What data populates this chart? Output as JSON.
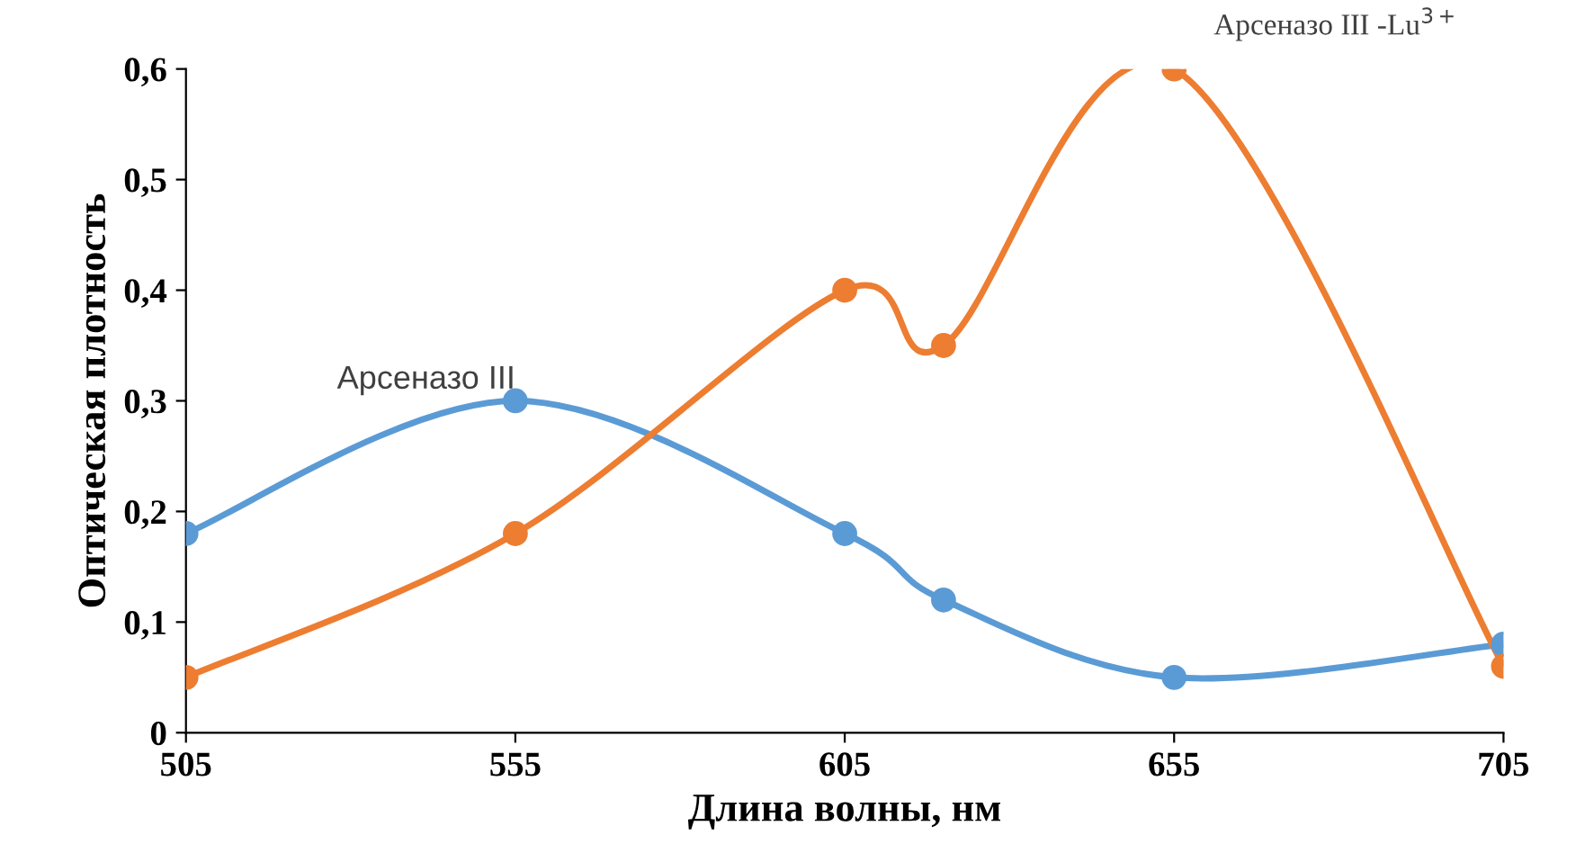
{
  "chart_data": {
    "type": "line",
    "xlabel": "Длина волны, нм",
    "ylabel": "Оптическая плотность",
    "x": [
      505,
      555,
      605,
      620,
      655,
      705
    ],
    "series": [
      {
        "name": "Арсеназо III",
        "color": "#5b9bd5",
        "values": [
          0.18,
          0.3,
          0.18,
          0.12,
          0.05,
          0.08
        ]
      },
      {
        "name": "Арсеназо III -Lu$^{3+}$",
        "color": "#ed7d31",
        "values": [
          0.05,
          0.18,
          0.4,
          0.35,
          0.6,
          0.06
        ]
      }
    ],
    "xlim": [
      505,
      705
    ],
    "xticks": [
      505,
      555,
      605,
      655,
      705
    ],
    "ylim": [
      0,
      0.6
    ],
    "yticks": [
      {
        "value": 0,
        "label": "0"
      },
      {
        "value": 0.1,
        "label": "0,1"
      },
      {
        "value": 0.2,
        "label": "0,2"
      },
      {
        "value": 0.3,
        "label": "0,3"
      },
      {
        "value": 0.4,
        "label": "0,4"
      },
      {
        "value": 0.5,
        "label": "0,5"
      },
      {
        "value": 0.6,
        "label": "0,6"
      }
    ],
    "marker": "circle",
    "line_style": "solid",
    "grid": false,
    "legend": false
  }
}
